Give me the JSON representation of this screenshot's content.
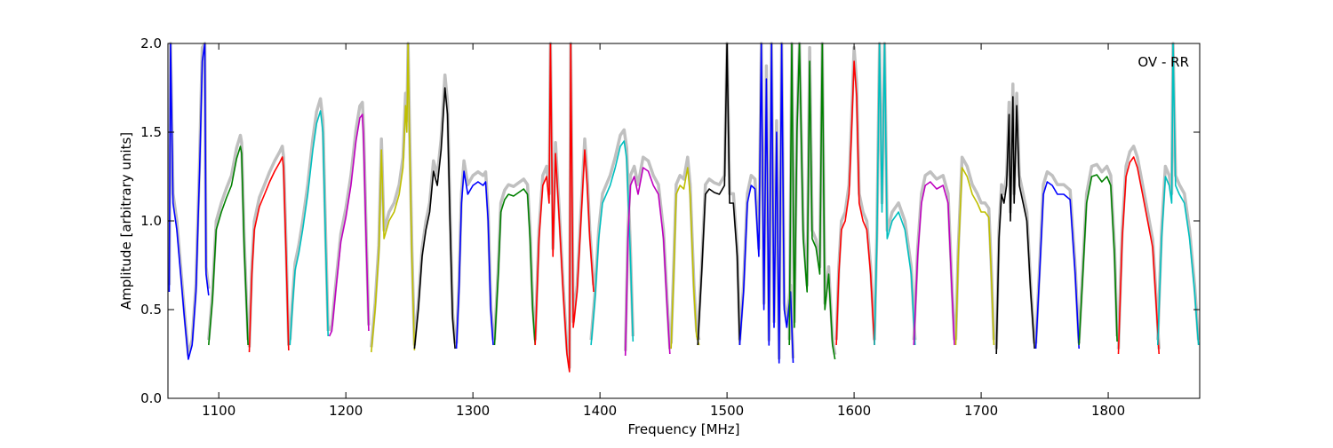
{
  "chart_data": {
    "type": "line",
    "title": "",
    "xlabel": "Frequency [MHz]",
    "ylabel": "Amplitude [arbitrary units]",
    "xlim": [
      1060,
      1872
    ],
    "ylim": [
      0.0,
      2.0
    ],
    "xticks": [
      1100,
      1200,
      1300,
      1400,
      1500,
      1600,
      1700,
      1800
    ],
    "xtick_labels": [
      "1100",
      "1200",
      "1300",
      "1400",
      "1500",
      "1600",
      "1700",
      "1800"
    ],
    "yticks": [
      0.0,
      0.5,
      1.0,
      1.5,
      2.0
    ],
    "ytick_labels": [
      "0.0",
      "0.5",
      "1.0",
      "1.5",
      "2.0"
    ],
    "grid": false,
    "annotation": "OV - RR",
    "annotation_position": "top-right",
    "reference_color": "#c0c0c0",
    "series": [
      {
        "color": "#0000ff",
        "x": [
          1061,
          1062,
          1064,
          1067,
          1070,
          1073,
          1076,
          1079,
          1082,
          1085,
          1087,
          1089,
          1090,
          1092
        ],
        "y": [
          0.6,
          2.0,
          1.1,
          0.95,
          0.7,
          0.45,
          0.22,
          0.3,
          0.6,
          1.3,
          1.9,
          2.0,
          0.7,
          0.58
        ]
      },
      {
        "color": "#008000",
        "x": [
          1092,
          1095,
          1098,
          1102,
          1106,
          1110,
          1114,
          1117,
          1118,
          1120,
          1123
        ],
        "y": [
          0.3,
          0.55,
          0.95,
          1.05,
          1.13,
          1.2,
          1.35,
          1.42,
          1.38,
          0.85,
          0.3
        ]
      },
      {
        "color": "#ff0000",
        "x": [
          1124,
          1126,
          1128,
          1132,
          1136,
          1140,
          1144,
          1148,
          1150,
          1151,
          1153,
          1155
        ],
        "y": [
          0.26,
          0.7,
          0.95,
          1.08,
          1.15,
          1.22,
          1.28,
          1.33,
          1.36,
          1.3,
          0.8,
          0.27
        ]
      },
      {
        "color": "#00bfbf",
        "x": [
          1156,
          1158,
          1160,
          1163,
          1166,
          1170,
          1174,
          1177,
          1180,
          1182,
          1184,
          1186
        ],
        "y": [
          0.3,
          0.52,
          0.72,
          0.82,
          0.95,
          1.15,
          1.4,
          1.55,
          1.62,
          1.5,
          0.9,
          0.35
        ]
      },
      {
        "color": "#bf00bf",
        "x": [
          1187,
          1189,
          1192,
          1196,
          1200,
          1204,
          1208,
          1211,
          1213,
          1214,
          1216,
          1218
        ],
        "y": [
          0.35,
          0.38,
          0.6,
          0.88,
          1.02,
          1.2,
          1.45,
          1.58,
          1.6,
          1.45,
          0.9,
          0.38
        ]
      },
      {
        "color": "#bfbf00",
        "x": [
          1220,
          1223,
          1226,
          1228,
          1230,
          1234,
          1238,
          1242,
          1245,
          1247,
          1248,
          1249,
          1250,
          1252,
          1254
        ],
        "y": [
          0.26,
          0.5,
          0.82,
          1.4,
          0.9,
          1.0,
          1.05,
          1.15,
          1.3,
          1.65,
          1.5,
          2.0,
          1.5,
          0.8,
          0.27
        ]
      },
      {
        "color": "#000000",
        "x": [
          1254,
          1257,
          1260,
          1263,
          1266,
          1269,
          1272,
          1275,
          1278,
          1280,
          1282,
          1284,
          1286
        ],
        "y": [
          0.28,
          0.5,
          0.8,
          0.95,
          1.05,
          1.28,
          1.2,
          1.4,
          1.75,
          1.6,
          1.0,
          0.45,
          0.28
        ]
      },
      {
        "color": "#0000ff",
        "x": [
          1287,
          1289,
          1291,
          1293,
          1296,
          1300,
          1304,
          1308,
          1310,
          1312,
          1314,
          1316
        ],
        "y": [
          0.28,
          0.6,
          1.1,
          1.28,
          1.15,
          1.2,
          1.22,
          1.2,
          1.22,
          1.0,
          0.5,
          0.3
        ]
      },
      {
        "color": "#008000",
        "x": [
          1317,
          1320,
          1322,
          1325,
          1328,
          1332,
          1336,
          1340,
          1343,
          1345,
          1347,
          1349
        ],
        "y": [
          0.3,
          0.7,
          1.05,
          1.12,
          1.15,
          1.14,
          1.16,
          1.18,
          1.15,
          0.9,
          0.5,
          0.3
        ]
      },
      {
        "color": "#ff0000",
        "x": [
          1349,
          1352,
          1355,
          1358,
          1360,
          1361,
          1363,
          1365,
          1368,
          1371,
          1374,
          1376,
          1377,
          1379,
          1382,
          1385,
          1388,
          1390,
          1392,
          1395
        ],
        "y": [
          0.3,
          0.9,
          1.2,
          1.25,
          1.1,
          2.0,
          0.8,
          1.38,
          1.0,
          0.6,
          0.25,
          0.15,
          2.0,
          0.4,
          0.6,
          1.0,
          1.4,
          1.2,
          0.9,
          0.6
        ]
      },
      {
        "color": "#00bfbf",
        "x": [
          1393,
          1396,
          1399,
          1402,
          1405,
          1408,
          1412,
          1416,
          1419,
          1421,
          1424,
          1426
        ],
        "y": [
          0.3,
          0.55,
          0.9,
          1.1,
          1.15,
          1.2,
          1.3,
          1.42,
          1.45,
          1.35,
          0.8,
          0.32
        ]
      },
      {
        "color": "#bf00bf",
        "x": [
          1420,
          1422,
          1424,
          1427,
          1430,
          1434,
          1438,
          1442,
          1446,
          1450,
          1453,
          1455
        ],
        "y": [
          0.24,
          0.9,
          1.2,
          1.25,
          1.15,
          1.3,
          1.28,
          1.2,
          1.15,
          0.9,
          0.5,
          0.25
        ]
      },
      {
        "color": "#bfbf00",
        "x": [
          1456,
          1458,
          1460,
          1463,
          1466,
          1469,
          1471,
          1474,
          1476,
          1478
        ],
        "y": [
          0.28,
          0.7,
          1.15,
          1.2,
          1.18,
          1.3,
          1.15,
          0.6,
          0.35,
          0.3
        ]
      },
      {
        "color": "#000000",
        "x": [
          1477,
          1480,
          1483,
          1486,
          1490,
          1494,
          1498,
          1500,
          1502,
          1505,
          1508,
          1510
        ],
        "y": [
          0.3,
          0.7,
          1.15,
          1.18,
          1.16,
          1.15,
          1.2,
          2.0,
          1.1,
          1.1,
          0.8,
          0.3
        ]
      },
      {
        "color": "#0000ff",
        "x": [
          1510,
          1513,
          1516,
          1519,
          1522,
          1525,
          1527,
          1529,
          1531,
          1533,
          1535,
          1537,
          1539,
          1541,
          1543,
          1545,
          1547,
          1550,
          1552
        ],
        "y": [
          0.3,
          0.6,
          1.1,
          1.2,
          1.18,
          0.8,
          2.0,
          0.5,
          1.8,
          0.3,
          2.0,
          0.4,
          1.5,
          0.2,
          2.0,
          0.5,
          0.4,
          0.6,
          0.2
        ]
      },
      {
        "color": "#008000",
        "x": [
          1549,
          1551,
          1553,
          1555,
          1557,
          1560,
          1563,
          1565,
          1567,
          1570,
          1573,
          1575,
          1577,
          1580,
          1583,
          1585
        ],
        "y": [
          0.3,
          2.0,
          0.4,
          1.5,
          2.0,
          0.9,
          0.6,
          1.9,
          0.9,
          0.85,
          0.7,
          2.0,
          0.5,
          0.7,
          0.3,
          0.22
        ]
      },
      {
        "color": "#ff0000",
        "x": [
          1586,
          1588,
          1590,
          1593,
          1596,
          1598,
          1600,
          1602,
          1604,
          1607,
          1610,
          1613,
          1616
        ],
        "y": [
          0.3,
          0.7,
          0.95,
          1.0,
          1.15,
          1.5,
          1.9,
          1.7,
          1.1,
          1.0,
          0.95,
          0.7,
          0.3
        ]
      },
      {
        "color": "#00bfbf",
        "x": [
          1616,
          1618,
          1620,
          1622,
          1624,
          1626,
          1630,
          1635,
          1640,
          1645,
          1648
        ],
        "y": [
          0.3,
          0.9,
          2.0,
          1.05,
          2.0,
          0.9,
          1.0,
          1.05,
          0.95,
          0.7,
          0.3
        ]
      },
      {
        "color": "#bf00bf",
        "x": [
          1647,
          1650,
          1653,
          1656,
          1660,
          1665,
          1670,
          1674,
          1677,
          1679
        ],
        "y": [
          0.3,
          0.8,
          1.1,
          1.2,
          1.22,
          1.18,
          1.2,
          1.1,
          0.6,
          0.3
        ]
      },
      {
        "color": "#bfbf00",
        "x": [
          1680,
          1682,
          1685,
          1689,
          1693,
          1697,
          1700,
          1703,
          1706,
          1708,
          1710
        ],
        "y": [
          0.3,
          0.8,
          1.3,
          1.25,
          1.15,
          1.1,
          1.05,
          1.05,
          1.02,
          0.7,
          0.3
        ]
      },
      {
        "color": "#000000",
        "x": [
          1712,
          1714,
          1716,
          1718,
          1720,
          1722,
          1723,
          1725,
          1726,
          1728,
          1730,
          1733,
          1736,
          1739,
          1742
        ],
        "y": [
          0.25,
          0.9,
          1.15,
          1.1,
          1.2,
          1.6,
          1.0,
          1.7,
          1.1,
          1.65,
          1.2,
          1.1,
          1.0,
          0.6,
          0.28
        ]
      },
      {
        "color": "#0000ff",
        "x": [
          1743,
          1746,
          1749,
          1752,
          1756,
          1760,
          1765,
          1770,
          1774,
          1777
        ],
        "y": [
          0.28,
          0.7,
          1.15,
          1.22,
          1.2,
          1.15,
          1.15,
          1.12,
          0.7,
          0.28
        ]
      },
      {
        "color": "#008000",
        "x": [
          1777,
          1780,
          1783,
          1787,
          1791,
          1795,
          1799,
          1802,
          1805,
          1807
        ],
        "y": [
          0.3,
          0.7,
          1.1,
          1.25,
          1.26,
          1.22,
          1.25,
          1.2,
          0.8,
          0.32
        ]
      },
      {
        "color": "#ff0000",
        "x": [
          1808,
          1811,
          1814,
          1817,
          1820,
          1823,
          1827,
          1831,
          1835,
          1838,
          1840
        ],
        "y": [
          0.25,
          0.9,
          1.25,
          1.33,
          1.36,
          1.3,
          1.15,
          1.0,
          0.85,
          0.5,
          0.25
        ]
      },
      {
        "color": "#00bfbf",
        "x": [
          1839,
          1842,
          1845,
          1848,
          1850,
          1851,
          1853,
          1856,
          1860,
          1864,
          1868,
          1871
        ],
        "y": [
          0.3,
          0.9,
          1.25,
          1.2,
          1.1,
          2.0,
          1.2,
          1.15,
          1.1,
          0.9,
          0.6,
          0.3
        ]
      }
    ]
  }
}
